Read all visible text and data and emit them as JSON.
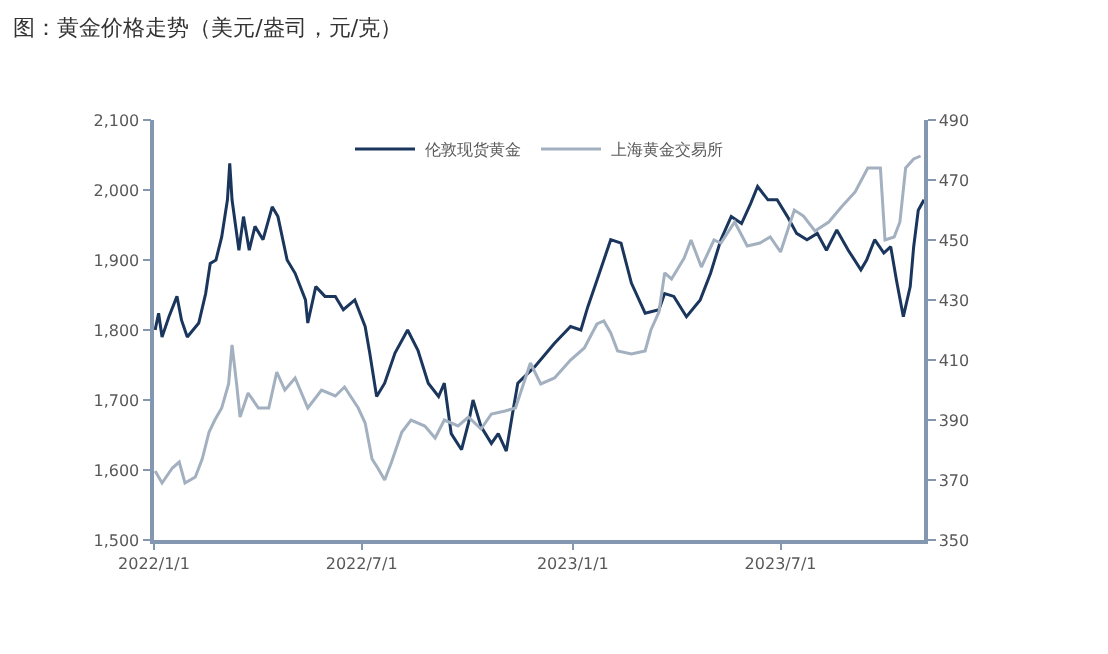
{
  "chart_data": {
    "type": "line",
    "title": "图：黄金价格走势（美元/盎司，元/克）",
    "xlim": [
      "2022-01-01",
      "2023-11-03"
    ],
    "xticks": [
      {
        "value": "2022-01-01",
        "label": "2022/1/1"
      },
      {
        "value": "2022-07-01",
        "label": "2022/7/1"
      },
      {
        "value": "2023-01-01",
        "label": "2023/1/1"
      },
      {
        "value": "2023-07-01",
        "label": "2023/7/1"
      }
    ],
    "ylim": [
      1500,
      2100
    ],
    "yticks": [
      {
        "value": 1500,
        "label": "1,500"
      },
      {
        "value": 1600,
        "label": "1,600"
      },
      {
        "value": 1700,
        "label": "1,700"
      },
      {
        "value": 1800,
        "label": "1,800"
      },
      {
        "value": 1900,
        "label": "1,900"
      },
      {
        "value": 2000,
        "label": "2,000"
      },
      {
        "value": 2100,
        "label": "2,100"
      }
    ],
    "y2lim": [
      350,
      490
    ],
    "y2ticks": [
      350,
      370,
      390,
      410,
      430,
      450,
      470,
      490
    ],
    "legend": "top",
    "line_style": "solid",
    "series": [
      {
        "name": "伦敦现货黄金",
        "color": "#1b365d",
        "axis": "y",
        "x": [
          "2022-01-02",
          "2022-01-05",
          "2022-01-08",
          "2022-01-14",
          "2022-01-21",
          "2022-01-25",
          "2022-01-30",
          "2022-02-09",
          "2022-02-15",
          "2022-02-19",
          "2022-02-24",
          "2022-03-01",
          "2022-03-06",
          "2022-03-08",
          "2022-03-10",
          "2022-03-16",
          "2022-03-20",
          "2022-03-25",
          "2022-03-30",
          "2022-04-06",
          "2022-04-14",
          "2022-04-19",
          "2022-04-27",
          "2022-05-04",
          "2022-05-13",
          "2022-05-15",
          "2022-05-22",
          "2022-05-30",
          "2022-06-08",
          "2022-06-15",
          "2022-06-25",
          "2022-07-04",
          "2022-07-08",
          "2022-07-14",
          "2022-07-21",
          "2022-07-30",
          "2022-08-10",
          "2022-08-19",
          "2022-08-28",
          "2022-09-06",
          "2022-09-11",
          "2022-09-17",
          "2022-09-26",
          "2022-10-02",
          "2022-10-06",
          "2022-10-13",
          "2022-10-22",
          "2022-10-28",
          "2022-11-04",
          "2022-11-10",
          "2022-11-14",
          "2022-11-29",
          "2022-12-16",
          "2022-12-30",
          "2023-01-08",
          "2023-01-14",
          "2023-01-22",
          "2023-02-03",
          "2023-02-12",
          "2023-02-21",
          "2023-03-05",
          "2023-03-17",
          "2023-03-22",
          "2023-03-30",
          "2023-04-10",
          "2023-04-22",
          "2023-05-01",
          "2023-05-10",
          "2023-05-19",
          "2023-05-28",
          "2023-06-05",
          "2023-06-11",
          "2023-06-20",
          "2023-06-28",
          "2023-07-07",
          "2023-07-15",
          "2023-07-24",
          "2023-08-02",
          "2023-08-10",
          "2023-08-19",
          "2023-08-29",
          "2023-09-09",
          "2023-09-14",
          "2023-09-21",
          "2023-09-29",
          "2023-10-05",
          "2023-10-10",
          "2023-10-16",
          "2023-10-22",
          "2023-10-25",
          "2023-10-29",
          "2023-11-03"
        ],
        "values": [
          1800,
          1824,
          1790,
          1819,
          1848,
          1814,
          1790,
          1810,
          1852,
          1895,
          1900,
          1933,
          1986,
          2038,
          1986,
          1914,
          1962,
          1914,
          1948,
          1929,
          1976,
          1962,
          1900,
          1881,
          1843,
          1810,
          1862,
          1848,
          1848,
          1829,
          1843,
          1805,
          1767,
          1705,
          1724,
          1767,
          1800,
          1771,
          1724,
          1705,
          1724,
          1652,
          1629,
          1667,
          1700,
          1662,
          1638,
          1652,
          1627,
          1686,
          1724,
          1748,
          1781,
          1805,
          1800,
          1833,
          1871,
          1929,
          1924,
          1867,
          1824,
          1829,
          1852,
          1848,
          1819,
          1843,
          1881,
          1929,
          1962,
          1952,
          1981,
          2005,
          1986,
          1986,
          1962,
          1938,
          1929,
          1938,
          1914,
          1943,
          1914,
          1886,
          1900,
          1929,
          1910,
          1919,
          1871,
          1819,
          1862,
          1919,
          1971,
          1986
        ]
      },
      {
        "name": "上海黄金交易所",
        "color": "#a3b0c0",
        "axis": "y2",
        "x": [
          "2022-01-02",
          "2022-01-08",
          "2022-01-17",
          "2022-01-23",
          "2022-01-28",
          "2022-02-06",
          "2022-02-12",
          "2022-02-18",
          "2022-02-23",
          "2022-03-01",
          "2022-03-07",
          "2022-03-10",
          "2022-03-14",
          "2022-03-17",
          "2022-03-24",
          "2022-04-02",
          "2022-04-11",
          "2022-04-18",
          "2022-04-25",
          "2022-05-04",
          "2022-05-15",
          "2022-05-27",
          "2022-06-08",
          "2022-06-16",
          "2022-06-28",
          "2022-07-04",
          "2022-07-10",
          "2022-07-15",
          "2022-07-21",
          "2022-07-27",
          "2022-08-05",
          "2022-08-13",
          "2022-08-25",
          "2022-09-03",
          "2022-09-11",
          "2022-09-23",
          "2022-10-02",
          "2022-10-13",
          "2022-10-22",
          "2022-11-03",
          "2022-11-12",
          "2022-11-25",
          "2022-12-04",
          "2022-12-16",
          "2022-12-30",
          "2023-01-11",
          "2023-01-22",
          "2023-01-28",
          "2023-02-03",
          "2023-02-09",
          "2023-02-21",
          "2023-03-05",
          "2023-03-10",
          "2023-03-17",
          "2023-03-22",
          "2023-03-28",
          "2023-04-08",
          "2023-04-14",
          "2023-04-23",
          "2023-05-04",
          "2023-05-10",
          "2023-05-22",
          "2023-06-02",
          "2023-06-13",
          "2023-06-22",
          "2023-07-01",
          "2023-07-13",
          "2023-07-21",
          "2023-07-31",
          "2023-08-12",
          "2023-08-23",
          "2023-09-04",
          "2023-09-15",
          "2023-09-26",
          "2023-09-30",
          "2023-10-08",
          "2023-10-13",
          "2023-10-18",
          "2023-10-25",
          "2023-10-31"
        ],
        "values": [
          373,
          369,
          374,
          376,
          369,
          371,
          377,
          386,
          390,
          394,
          402,
          415,
          402,
          391,
          399,
          394,
          394,
          406,
          400,
          404,
          394,
          400,
          398,
          401,
          394,
          389,
          377,
          374,
          370,
          376,
          386,
          390,
          388,
          384,
          390,
          388,
          391,
          387,
          392,
          393,
          394,
          409,
          402,
          404,
          410,
          414,
          422,
          423,
          419,
          413,
          412,
          413,
          420,
          426,
          439,
          437,
          444,
          450,
          441,
          450,
          449,
          456,
          448,
          449,
          451,
          446,
          460,
          458,
          453,
          456,
          461,
          466,
          474,
          474,
          450,
          451,
          456,
          474,
          477,
          478
        ]
      }
    ]
  }
}
